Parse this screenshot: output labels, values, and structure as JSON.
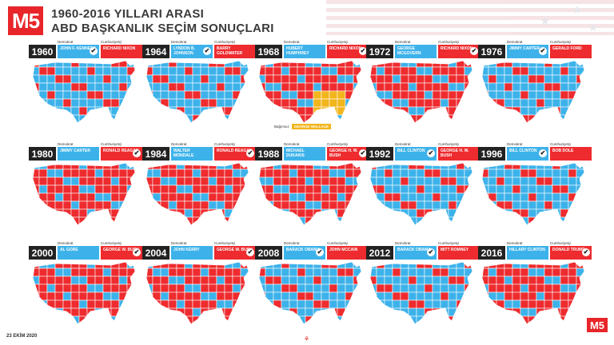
{
  "header": {
    "logo": "M5",
    "title_line1": "1960-2016 YILLARI ARASI",
    "title_line2": "ABD BAŞKANLIK SEÇİM SONUÇLARI"
  },
  "labels": {
    "dem": "Demokrat",
    "rep": "Cumhuriyetçi",
    "independent": "Bağımsız"
  },
  "colors": {
    "dem": "#3db2ea",
    "rep": "#ee2b2e",
    "independent": "#f2b51c"
  },
  "elections": [
    {
      "year": "1960",
      "dem": "JOHN F. KENNEDY",
      "rep": "RICHARD NIXON",
      "winner": "dem"
    },
    {
      "year": "1964",
      "dem": "LYNDON B. JOHNSON",
      "rep": "BARRY GOLDWATER",
      "winner": "dem"
    },
    {
      "year": "1968",
      "dem": "HUBERT HUMPHREY",
      "rep": "RICHARD NIXON",
      "winner": "rep"
    },
    {
      "year": "1972",
      "dem": "GEORGE MCGOVERN",
      "rep": "RICHARD NIXON",
      "winner": "rep"
    },
    {
      "year": "1976",
      "dem": "JIMMY CARTER",
      "rep": "GERALD FORD",
      "winner": "dem"
    },
    {
      "year": "1980",
      "dem": "JIMMY CARTER",
      "rep": "RONALD REAGAN",
      "winner": "rep"
    },
    {
      "year": "1984",
      "dem": "WALTER MONDALE",
      "rep": "RONALD REAGAN",
      "winner": "rep"
    },
    {
      "year": "1988",
      "dem": "MICHAEL DUKAKIS",
      "rep": "GEORGE H. W. BUSH",
      "winner": "rep"
    },
    {
      "year": "1992",
      "dem": "BILL CLINTON",
      "rep": "GEORGE H. W. BUSH",
      "winner": "dem"
    },
    {
      "year": "1996",
      "dem": "BILL CLINTON",
      "rep": "BOB DOLE",
      "winner": "dem"
    },
    {
      "year": "2000",
      "dem": "AL GORE",
      "rep": "GEORGE W. BUSH",
      "winner": "rep"
    },
    {
      "year": "2004",
      "dem": "JOHN KERRY",
      "rep": "GEORGE W. BUSH",
      "winner": "rep"
    },
    {
      "year": "2008",
      "dem": "BARACK OBAMA",
      "rep": "JOHN MCCAIN",
      "winner": "dem"
    },
    {
      "year": "2012",
      "dem": "BARACK OBAMA",
      "rep": "MITT ROMNEY",
      "winner": "dem"
    },
    {
      "year": "2016",
      "dem": "HILLARY CLINTON",
      "rep": "DONALD TRUMP",
      "winner": "rep"
    }
  ],
  "independent_1968": "GEORGE WALLACE",
  "footer": {
    "date": "23 EKİM 2020",
    "logo": "M5"
  }
}
